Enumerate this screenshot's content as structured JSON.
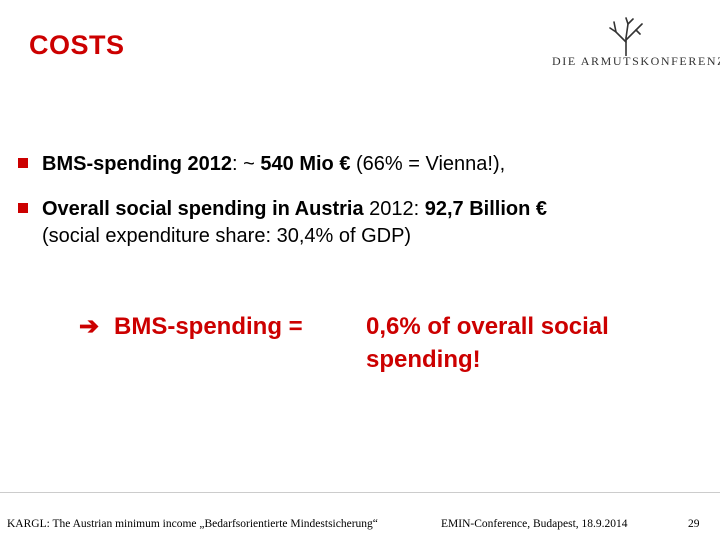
{
  "slide": {
    "title": "COSTS",
    "logo_text": "DIE ARMUTSKONFERENZ.",
    "bullets": [
      {
        "bold1": "BMS-spending 2012",
        "normal1": ": ~ ",
        "bold2": "540 Mio €",
        "normal2": " (66% = Vienna!),",
        "continuation": ""
      },
      {
        "bold1": "Overall social spending in Austria",
        "normal1": " 2012: ",
        "bold2": "92,7 Billion €",
        "normal2": "",
        "continuation": "(social expenditure share: 30,4% of GDP)"
      }
    ],
    "conclusion": {
      "arrow": "➔",
      "label": "BMS-spending =",
      "value": "0,6% of overall social spending!"
    },
    "colors": {
      "accent": "#cc0000",
      "bullet_square": "#cc0000",
      "text": "#000000"
    },
    "bullet_icon": "red-square-bullet"
  },
  "footer": {
    "left": "KARGL: The Austrian minimum income „Bedarfsorientierte Mindestsicherung“",
    "center": "EMIN-Conference, Budapest, 18.9.2014",
    "page_number": "29"
  }
}
